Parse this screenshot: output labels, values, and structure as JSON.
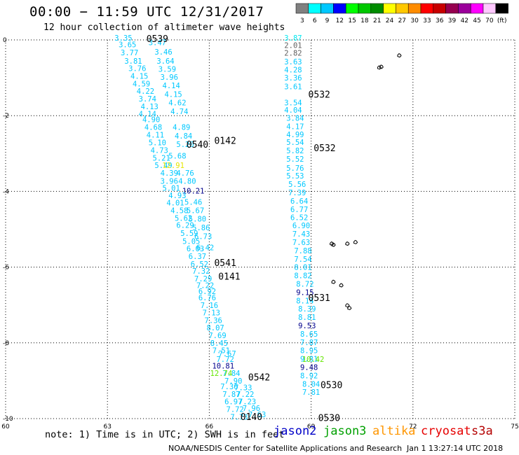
{
  "header": {
    "title": "00:00 − 11:59 UTC 12/31/2017",
    "subtitle": "12 hour collection of altimeter wave heights"
  },
  "colorbar": {
    "labels": [
      "3",
      "6",
      "9",
      "12",
      "15",
      "18",
      "21",
      "24",
      "27",
      "30",
      "33",
      "36",
      "39",
      "42",
      "45",
      "70",
      "(ft)"
    ],
    "colors": [
      "#808080",
      "#00ffff",
      "#00c8ff",
      "#0000ff",
      "#00ff00",
      "#00c800",
      "#008c00",
      "#ffff00",
      "#ffc800",
      "#ff8c00",
      "#ff0000",
      "#c80000",
      "#960050",
      "#9b009b",
      "#ff00ff",
      "#ffc8ff",
      "#000000"
    ]
  },
  "colors": {
    "cyan": "#00c8ff",
    "lightcyan": "#00e8f0",
    "gray": "#606060",
    "blue": "#0000c8",
    "navy": "#00008c",
    "orange": "#ff9600",
    "red": "#e60000",
    "green": "#00b400",
    "limegreen": "#64e600",
    "yellow": "#e6e600",
    "darkred": "#b40000"
  },
  "footer": {
    "note": "note:  1) Time is in UTC;  2) SWH is in feet",
    "satellites": [
      {
        "name": "jason2",
        "color": "#0000c8"
      },
      {
        "name": "jason3",
        "color": "#00a000"
      },
      {
        "name": "altika",
        "color": "#ff9600"
      },
      {
        "name": "cryosat",
        "color": "#e60000"
      },
      {
        "name": "s3a",
        "color": "#b40000"
      }
    ],
    "credit": "NOAA/NESDIS Center for Satellite Applications and Research",
    "timestamp": "Jan  1 13:27:14 UTC 2018"
  },
  "chart_data": {
    "type": "scatter",
    "title": "00:00 − 11:59 UTC 12/31/2017",
    "subtitle": "12 hour collection of altimeter wave heights",
    "xlim": [
      60,
      75
    ],
    "ylim": [
      -10,
      0
    ],
    "xticks": [
      "60",
      "63",
      "66",
      "69",
      "72",
      "75"
    ],
    "yticks": [
      "0",
      "-2",
      "-4",
      "-6",
      "-8",
      "-10"
    ],
    "grid": true,
    "units": "ft",
    "track_labels": [
      {
        "text": "0539",
        "x": 64.47,
        "y": 0.04,
        "color": "blue"
      },
      {
        "text": "0532",
        "x": 69.24,
        "y": -1.43,
        "color": "red"
      },
      {
        "text": "0540",
        "x": 65.65,
        "y": -2.75,
        "color": "blue"
      },
      {
        "text": "0142",
        "x": 66.47,
        "y": -2.65,
        "color": "orange"
      },
      {
        "text": "0532",
        "x": 69.4,
        "y": -2.85,
        "color": "red"
      },
      {
        "text": "0541",
        "x": 66.47,
        "y": -5.88,
        "color": "blue"
      },
      {
        "text": "0141",
        "x": 66.59,
        "y": -6.24,
        "color": "orange"
      },
      {
        "text": "0531",
        "x": 69.24,
        "y": -6.8,
        "color": "red"
      },
      {
        "text": "0542",
        "x": 67.47,
        "y": -8.9,
        "color": "blue"
      },
      {
        "text": "0530",
        "x": 69.6,
        "y": -9.1,
        "color": "red"
      },
      {
        "text": "0140",
        "x": 67.24,
        "y": -9.94,
        "color": "orange"
      },
      {
        "text": "0530",
        "x": 69.53,
        "y": -9.97,
        "color": "red"
      }
    ],
    "points": [
      {
        "x": 63.47,
        "y": 0.04,
        "v": "3.35",
        "c": "cyan"
      },
      {
        "x": 63.59,
        "y": -0.14,
        "v": "3.65",
        "c": "cyan"
      },
      {
        "x": 64.47,
        "y": -0.08,
        "v": "3.47",
        "c": "cyan"
      },
      {
        "x": 63.65,
        "y": -0.35,
        "v": "3.77",
        "c": "cyan"
      },
      {
        "x": 64.65,
        "y": -0.33,
        "v": "3.46",
        "c": "cyan"
      },
      {
        "x": 63.76,
        "y": -0.57,
        "v": "3.81",
        "c": "cyan"
      },
      {
        "x": 64.71,
        "y": -0.57,
        "v": "3.64",
        "c": "cyan"
      },
      {
        "x": 63.88,
        "y": -0.77,
        "v": "3.76",
        "c": "cyan"
      },
      {
        "x": 64.76,
        "y": -0.79,
        "v": "3.59",
        "c": "cyan"
      },
      {
        "x": 63.94,
        "y": -0.97,
        "v": "4.15",
        "c": "cyan"
      },
      {
        "x": 64.82,
        "y": -1.0,
        "v": "3.96",
        "c": "cyan"
      },
      {
        "x": 64.0,
        "y": -1.17,
        "v": "4.59",
        "c": "cyan"
      },
      {
        "x": 64.88,
        "y": -1.22,
        "v": "4.14",
        "c": "cyan"
      },
      {
        "x": 64.12,
        "y": -1.37,
        "v": "4.22",
        "c": "cyan"
      },
      {
        "x": 64.94,
        "y": -1.45,
        "v": "4.15",
        "c": "cyan"
      },
      {
        "x": 64.18,
        "y": -1.57,
        "v": "3.74",
        "c": "cyan"
      },
      {
        "x": 65.06,
        "y": -1.67,
        "v": "4.62",
        "c": "cyan"
      },
      {
        "x": 64.24,
        "y": -1.77,
        "v": "4.13",
        "c": "cyan"
      },
      {
        "x": 64.18,
        "y": -1.97,
        "v": "4.14",
        "c": "cyan"
      },
      {
        "x": 65.12,
        "y": -1.9,
        "v": "4.74",
        "c": "cyan"
      },
      {
        "x": 64.29,
        "y": -2.12,
        "v": "4.90",
        "c": "cyan"
      },
      {
        "x": 64.35,
        "y": -2.32,
        "v": "4.68",
        "c": "cyan"
      },
      {
        "x": 65.18,
        "y": -2.32,
        "v": "4.89",
        "c": "cyan"
      },
      {
        "x": 64.41,
        "y": -2.52,
        "v": "4.11",
        "c": "cyan"
      },
      {
        "x": 65.24,
        "y": -2.55,
        "v": "4.84",
        "c": "cyan"
      },
      {
        "x": 64.47,
        "y": -2.73,
        "v": "5.10",
        "c": "cyan"
      },
      {
        "x": 65.29,
        "y": -2.77,
        "v": "5.20",
        "c": "cyan"
      },
      {
        "x": 64.53,
        "y": -2.93,
        "v": "4.73",
        "c": "cyan"
      },
      {
        "x": 64.59,
        "y": -3.13,
        "v": "5.21",
        "c": "cyan"
      },
      {
        "x": 65.06,
        "y": -3.08,
        "v": "5.68",
        "c": "cyan"
      },
      {
        "x": 64.65,
        "y": -3.33,
        "v": "5.49",
        "c": "cyan"
      },
      {
        "x": 64.94,
        "y": -3.33,
        "v": "12.91",
        "c": "yellow"
      },
      {
        "x": 64.82,
        "y": -3.53,
        "v": "4.39",
        "c": "cyan"
      },
      {
        "x": 65.29,
        "y": -3.53,
        "v": "4.76",
        "c": "cyan"
      },
      {
        "x": 64.82,
        "y": -3.74,
        "v": "3.96",
        "c": "cyan"
      },
      {
        "x": 65.35,
        "y": -3.74,
        "v": "4.80",
        "c": "cyan"
      },
      {
        "x": 64.88,
        "y": -3.93,
        "v": "5.01",
        "c": "cyan"
      },
      {
        "x": 65.53,
        "y": -4.0,
        "v": "10.21",
        "c": "navy"
      },
      {
        "x": 65.06,
        "y": -4.12,
        "v": "4.93",
        "c": "cyan"
      },
      {
        "x": 65.0,
        "y": -4.32,
        "v": "4.01",
        "c": "cyan"
      },
      {
        "x": 65.53,
        "y": -4.3,
        "v": "5.46",
        "c": "cyan"
      },
      {
        "x": 65.12,
        "y": -4.52,
        "v": "4.58",
        "c": "cyan"
      },
      {
        "x": 65.59,
        "y": -4.52,
        "v": "5.67",
        "c": "cyan"
      },
      {
        "x": 65.24,
        "y": -4.72,
        "v": "5.62",
        "c": "cyan"
      },
      {
        "x": 65.65,
        "y": -4.74,
        "v": "5.80",
        "c": "cyan"
      },
      {
        "x": 65.29,
        "y": -4.91,
        "v": "6.29",
        "c": "cyan"
      },
      {
        "x": 65.76,
        "y": -4.97,
        "v": "5.86",
        "c": "cyan"
      },
      {
        "x": 65.41,
        "y": -5.12,
        "v": "5.59",
        "c": "cyan"
      },
      {
        "x": 65.82,
        "y": -5.2,
        "v": "6.73",
        "c": "cyan"
      },
      {
        "x": 65.47,
        "y": -5.33,
        "v": "5.05",
        "c": "cyan"
      },
      {
        "x": 65.59,
        "y": -5.53,
        "v": "6.03",
        "c": "cyan"
      },
      {
        "x": 65.88,
        "y": -5.5,
        "v": "6.42",
        "c": "cyan"
      },
      {
        "x": 65.65,
        "y": -5.73,
        "v": "6.37",
        "c": "cyan"
      },
      {
        "x": 65.71,
        "y": -5.93,
        "v": "6.52",
        "c": "cyan"
      },
      {
        "x": 65.76,
        "y": -6.12,
        "v": "7.32",
        "c": "cyan"
      },
      {
        "x": 65.82,
        "y": -6.32,
        "v": "7.29",
        "c": "cyan"
      },
      {
        "x": 65.88,
        "y": -6.5,
        "v": "7.22",
        "c": "cyan"
      },
      {
        "x": 65.94,
        "y": -6.65,
        "v": "6.92",
        "c": "cyan"
      },
      {
        "x": 65.94,
        "y": -6.82,
        "v": "6.76",
        "c": "cyan"
      },
      {
        "x": 66.0,
        "y": -7.02,
        "v": "7.16",
        "c": "cyan"
      },
      {
        "x": 66.06,
        "y": -7.22,
        "v": "7.13",
        "c": "cyan"
      },
      {
        "x": 66.12,
        "y": -7.42,
        "v": "7.36",
        "c": "cyan"
      },
      {
        "x": 66.18,
        "y": -7.62,
        "v": "8.07",
        "c": "cyan"
      },
      {
        "x": 66.24,
        "y": -7.82,
        "v": "7.69",
        "c": "cyan"
      },
      {
        "x": 66.29,
        "y": -8.02,
        "v": "8.45",
        "c": "cyan"
      },
      {
        "x": 66.35,
        "y": -8.22,
        "v": "7.51",
        "c": "cyan"
      },
      {
        "x": 66.53,
        "y": -8.3,
        "v": "7.67",
        "c": "cyan"
      },
      {
        "x": 66.47,
        "y": -8.45,
        "v": "7.72",
        "c": "cyan"
      },
      {
        "x": 66.41,
        "y": -8.62,
        "v": "10.81",
        "c": "navy"
      },
      {
        "x": 66.65,
        "y": -8.82,
        "v": "7.84",
        "c": "cyan"
      },
      {
        "x": 66.35,
        "y": -8.82,
        "v": "12.74",
        "c": "limegreen"
      },
      {
        "x": 66.71,
        "y": -9.02,
        "v": "7.90",
        "c": "cyan"
      },
      {
        "x": 66.59,
        "y": -9.17,
        "v": "7.36",
        "c": "cyan"
      },
      {
        "x": 67.0,
        "y": -9.2,
        "v": "7.33",
        "c": "cyan"
      },
      {
        "x": 66.65,
        "y": -9.37,
        "v": "7.87",
        "c": "cyan"
      },
      {
        "x": 67.06,
        "y": -9.37,
        "v": "7.22",
        "c": "cyan"
      },
      {
        "x": 66.71,
        "y": -9.57,
        "v": "6.97",
        "c": "cyan"
      },
      {
        "x": 67.12,
        "y": -9.57,
        "v": "7.23",
        "c": "cyan"
      },
      {
        "x": 66.76,
        "y": -9.77,
        "v": "7.72",
        "c": "cyan"
      },
      {
        "x": 67.24,
        "y": -9.74,
        "v": "7.96",
        "c": "cyan"
      },
      {
        "x": 66.88,
        "y": -9.97,
        "v": "7.73",
        "c": "cyan"
      },
      {
        "x": 67.41,
        "y": -9.91,
        "v": "7.63",
        "c": "cyan"
      },
      {
        "x": 68.47,
        "y": 0.04,
        "v": "3.87",
        "c": "lightcyan"
      },
      {
        "x": 68.47,
        "y": -0.16,
        "v": "2.01",
        "c": "gray"
      },
      {
        "x": 68.47,
        "y": -0.36,
        "v": "2.82",
        "c": "gray"
      },
      {
        "x": 68.47,
        "y": -0.59,
        "v": "3.63",
        "c": "cyan"
      },
      {
        "x": 68.47,
        "y": -0.8,
        "v": "4.28",
        "c": "cyan"
      },
      {
        "x": 68.47,
        "y": -1.02,
        "v": "3.36",
        "c": "cyan"
      },
      {
        "x": 68.47,
        "y": -1.25,
        "v": "3.61",
        "c": "cyan"
      },
      {
        "x": 68.47,
        "y": -1.67,
        "v": "3.54",
        "c": "cyan"
      },
      {
        "x": 68.47,
        "y": -1.87,
        "v": "4.04",
        "c": "cyan"
      },
      {
        "x": 68.53,
        "y": -2.08,
        "v": "3.84",
        "c": "cyan"
      },
      {
        "x": 68.53,
        "y": -2.3,
        "v": "4.17",
        "c": "cyan"
      },
      {
        "x": 68.53,
        "y": -2.51,
        "v": "4.99",
        "c": "cyan"
      },
      {
        "x": 68.53,
        "y": -2.72,
        "v": "5.54",
        "c": "cyan"
      },
      {
        "x": 68.53,
        "y": -2.94,
        "v": "5.82",
        "c": "cyan"
      },
      {
        "x": 68.53,
        "y": -3.16,
        "v": "5.52",
        "c": "cyan"
      },
      {
        "x": 68.53,
        "y": -3.4,
        "v": "5.76",
        "c": "cyan"
      },
      {
        "x": 68.53,
        "y": -3.6,
        "v": "5.53",
        "c": "cyan"
      },
      {
        "x": 68.59,
        "y": -3.83,
        "v": "5.56",
        "c": "cyan"
      },
      {
        "x": 68.59,
        "y": -4.05,
        "v": "7.39",
        "c": "cyan"
      },
      {
        "x": 68.65,
        "y": -4.27,
        "v": "6.64",
        "c": "cyan"
      },
      {
        "x": 68.65,
        "y": -4.49,
        "v": "6.77",
        "c": "cyan"
      },
      {
        "x": 68.65,
        "y": -4.7,
        "v": "6.52",
        "c": "cyan"
      },
      {
        "x": 68.71,
        "y": -4.92,
        "v": "6.90",
        "c": "cyan"
      },
      {
        "x": 68.71,
        "y": -5.14,
        "v": "7.43",
        "c": "cyan"
      },
      {
        "x": 68.71,
        "y": -5.36,
        "v": "7.63",
        "c": "cyan"
      },
      {
        "x": 68.76,
        "y": -5.58,
        "v": "7.88",
        "c": "cyan"
      },
      {
        "x": 68.76,
        "y": -5.8,
        "v": "7.54",
        "c": "cyan"
      },
      {
        "x": 68.76,
        "y": -6.02,
        "v": "8.01",
        "c": "cyan"
      },
      {
        "x": 68.76,
        "y": -6.24,
        "v": "8.82",
        "c": "cyan"
      },
      {
        "x": 68.82,
        "y": -6.46,
        "v": "8.72",
        "c": "cyan"
      },
      {
        "x": 68.82,
        "y": -6.68,
        "v": "9.15",
        "c": "navy"
      },
      {
        "x": 68.82,
        "y": -6.9,
        "v": "8.14",
        "c": "cyan"
      },
      {
        "x": 68.88,
        "y": -7.12,
        "v": "8.39",
        "c": "cyan"
      },
      {
        "x": 68.88,
        "y": -7.34,
        "v": "8.81",
        "c": "cyan"
      },
      {
        "x": 68.88,
        "y": -7.56,
        "v": "9.53",
        "c": "navy"
      },
      {
        "x": 68.94,
        "y": -7.78,
        "v": "8.65",
        "c": "cyan"
      },
      {
        "x": 68.94,
        "y": -8.0,
        "v": "7.87",
        "c": "cyan"
      },
      {
        "x": 68.94,
        "y": -8.22,
        "v": "8.95",
        "c": "cyan"
      },
      {
        "x": 68.94,
        "y": -8.44,
        "v": "9.81",
        "c": "cyan"
      },
      {
        "x": 69.06,
        "y": -8.45,
        "v": "10.42",
        "c": "limegreen"
      },
      {
        "x": 68.94,
        "y": -8.66,
        "v": "9.48",
        "c": "navy"
      },
      {
        "x": 68.94,
        "y": -8.88,
        "v": "8.92",
        "c": "cyan"
      },
      {
        "x": 69.0,
        "y": -9.1,
        "v": "8.04",
        "c": "cyan"
      },
      {
        "x": 69.0,
        "y": -9.32,
        "v": "7.81",
        "c": "cyan"
      }
    ],
    "land": [
      {
        "x": 71.59,
        "y": -0.4
      },
      {
        "x": 71.06,
        "y": -0.7
      },
      {
        "x": 71.0,
        "y": -0.72
      },
      {
        "x": 69.6,
        "y": -5.37
      },
      {
        "x": 69.65,
        "y": -5.4
      },
      {
        "x": 70.06,
        "y": -5.37
      },
      {
        "x": 70.3,
        "y": -5.33
      },
      {
        "x": 69.65,
        "y": -6.38
      },
      {
        "x": 69.88,
        "y": -6.47
      },
      {
        "x": 70.06,
        "y": -7.0
      },
      {
        "x": 70.12,
        "y": -7.07
      }
    ]
  }
}
